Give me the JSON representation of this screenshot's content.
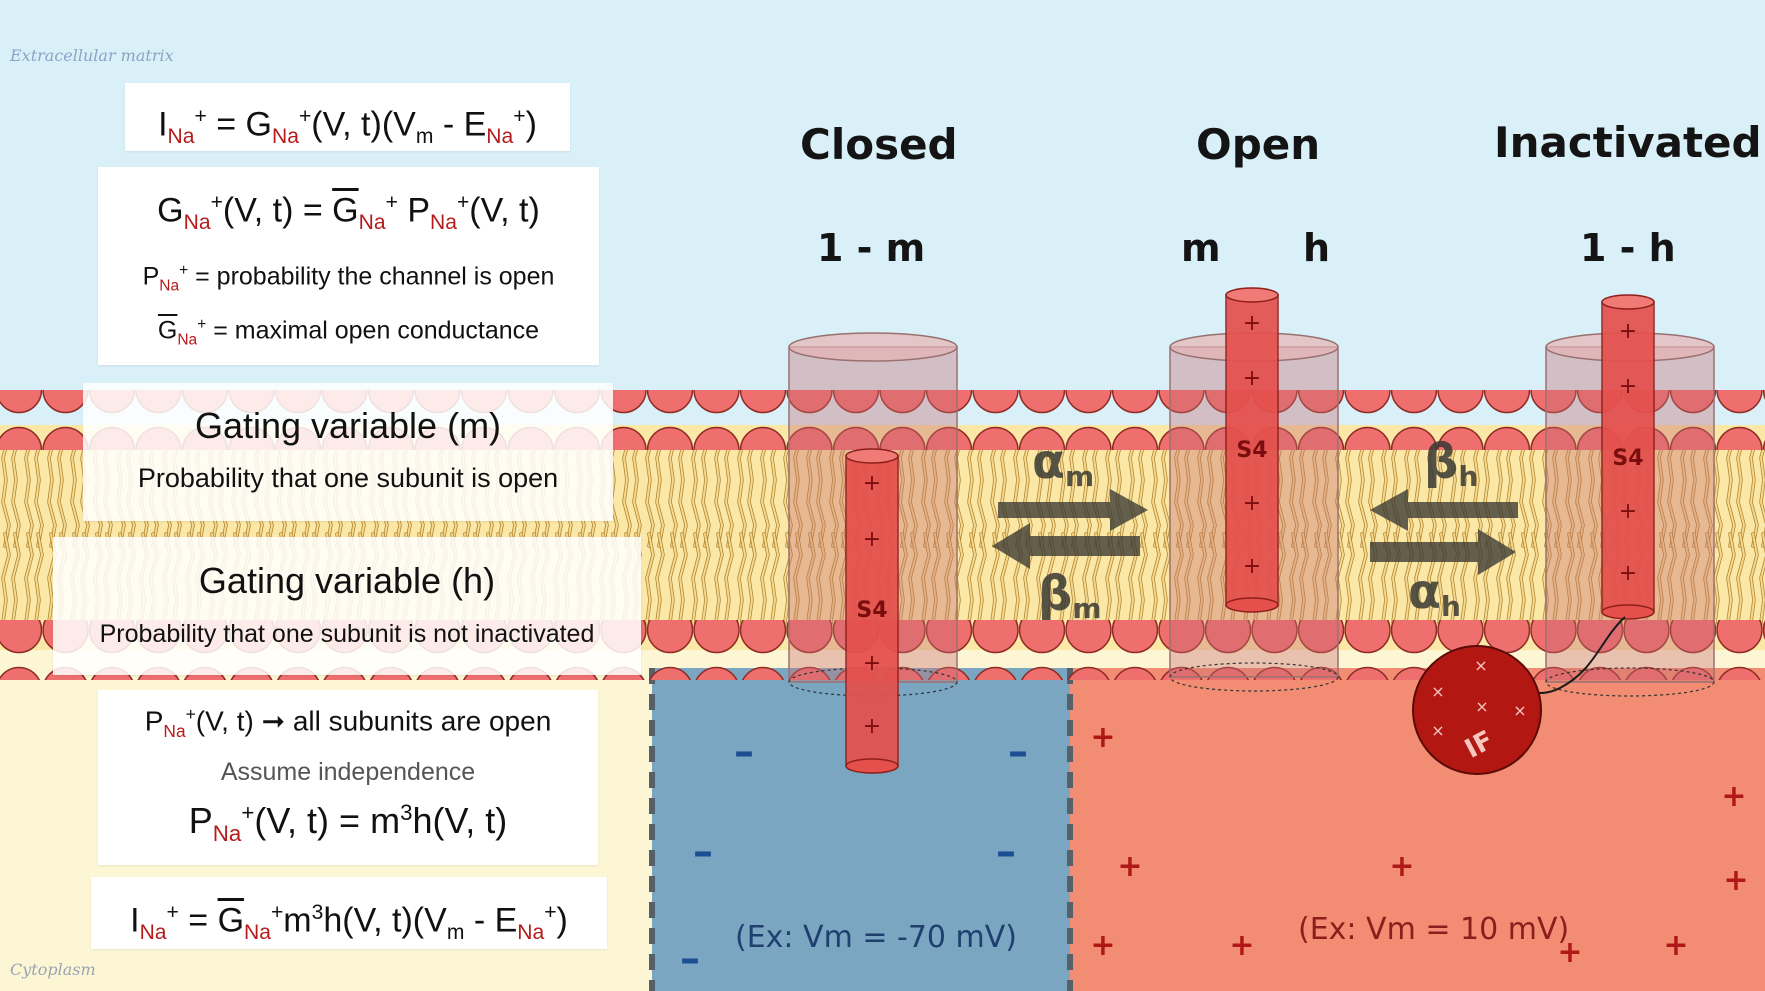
{
  "labels": {
    "extracellular": "Extracellular matrix",
    "cytoplasm": "Cytoplasm"
  },
  "states": {
    "closed": "Closed",
    "open": "Open",
    "inactivated": "Inactivated"
  },
  "state_vars": {
    "closed": "1 - m",
    "open_m": "m",
    "open_h": "h",
    "inactivated": "1 - h"
  },
  "rates": {
    "alpha": "α",
    "beta": "β",
    "sub_m": "m",
    "sub_h": "h"
  },
  "channel": {
    "s4": "S4",
    "plus": "+",
    "inactivation_ball": "IF"
  },
  "examples": {
    "hyperpolarized": "(Ex: Vm = -70 mV)",
    "depolarized": "(Ex: Vm = 10 mV)"
  },
  "charges": {
    "minus": "–",
    "plus": "+"
  },
  "eq1": {
    "I": "I",
    "na": "Na",
    "plus": "+",
    "mid": " = G",
    "rest": "(V, t)(V",
    "m": "m",
    "minus_e": " - E",
    "close": ")"
  },
  "eq2": {
    "G": "G",
    "na": "Na",
    "plus": "+",
    "mid": "(V, t) = ",
    "gbar": "G",
    "p": " P",
    "rest": "(V, t)"
  },
  "def1": {
    "P": "P",
    "na": "Na",
    "plus": "+",
    "text": " = probability the channel is open"
  },
  "def2": {
    "G": "G",
    "na": "Na",
    "plus": "+",
    "text": " = maximal open conductance"
  },
  "gating_m": {
    "title": "Gating variable (m)",
    "desc": "Probability that one subunit is open"
  },
  "gating_h": {
    "title": "Gating variable (h)",
    "desc": "Probability that one subunit is not inactivated"
  },
  "assume": {
    "P": "P",
    "na": "Na",
    "plus": "+",
    "line1_rest": "(V, t) ➞ all subunits are open",
    "note": "Assume independence",
    "line3_rest": "(V, t) = m",
    "cube": "3",
    "line3_end": "h(V, t)"
  },
  "final": {
    "I": "I",
    "na": "Na",
    "plus": "+",
    "eq": " = ",
    "G": "G",
    "m3": "m",
    "cube": "3",
    "rest": "h(V, t)(V",
    "m": "m",
    "minus_e": " - E",
    "close": ")"
  },
  "colors": {
    "sky": "#d9f0f8",
    "cytoplasm": "#fdf6d4",
    "hyperpolarized_region": "#7aa6c2",
    "depolarized_region": "#f28c72",
    "lipid_head": "#ef6f6e",
    "lipid_tail": "#f7d889",
    "helix": "#e5504d",
    "ball": "#b31712",
    "ink": "#141414"
  }
}
